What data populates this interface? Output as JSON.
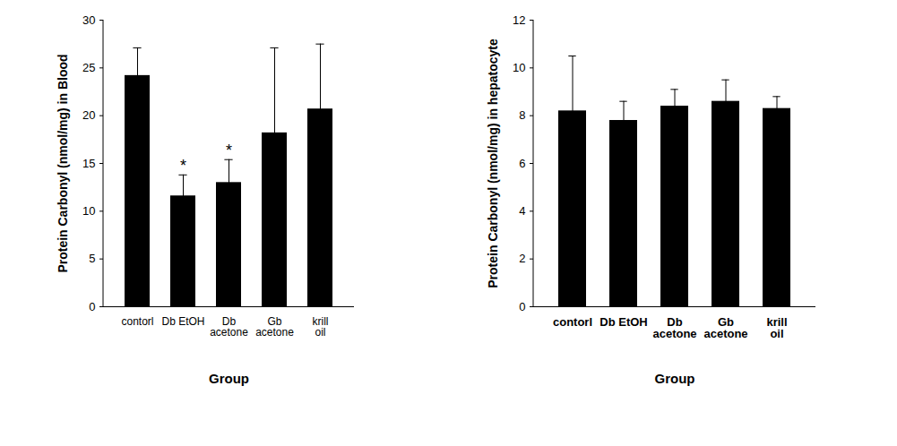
{
  "chart_data": [
    {
      "type": "bar",
      "x_label": "Group",
      "y_label": "Protein Carbonyl (nmol/mg) in Blood",
      "categories": [
        "contorl",
        "Db EtOH",
        "Db acetone",
        "Gb acetone",
        "krill oil"
      ],
      "values": [
        24.2,
        11.6,
        13.0,
        18.2,
        20.7
      ],
      "errors": [
        2.9,
        2.2,
        2.4,
        8.9,
        6.8
      ],
      "color": "#000000",
      "ylim": [
        0,
        30
      ],
      "yticks": [
        0,
        5,
        10,
        15,
        20,
        25,
        30
      ],
      "annotations": [
        {
          "category": "Db EtOH",
          "text": "*"
        },
        {
          "category": "Db acetone",
          "text": "*"
        }
      ]
    },
    {
      "type": "bar",
      "x_label": "Group",
      "y_label": "Protein Carbonyl (nmol/mg) in hepatocyte",
      "categories": [
        "contorl",
        "Db EtOH",
        "Db acetone",
        "Gb acetone",
        "krill oil"
      ],
      "values": [
        8.2,
        7.8,
        8.4,
        8.6,
        8.3
      ],
      "errors": [
        2.3,
        0.8,
        0.7,
        0.9,
        0.5
      ],
      "color": "#000000",
      "ylim": [
        0,
        12
      ],
      "yticks": [
        0,
        2,
        4,
        6,
        8,
        10,
        12
      ]
    }
  ]
}
